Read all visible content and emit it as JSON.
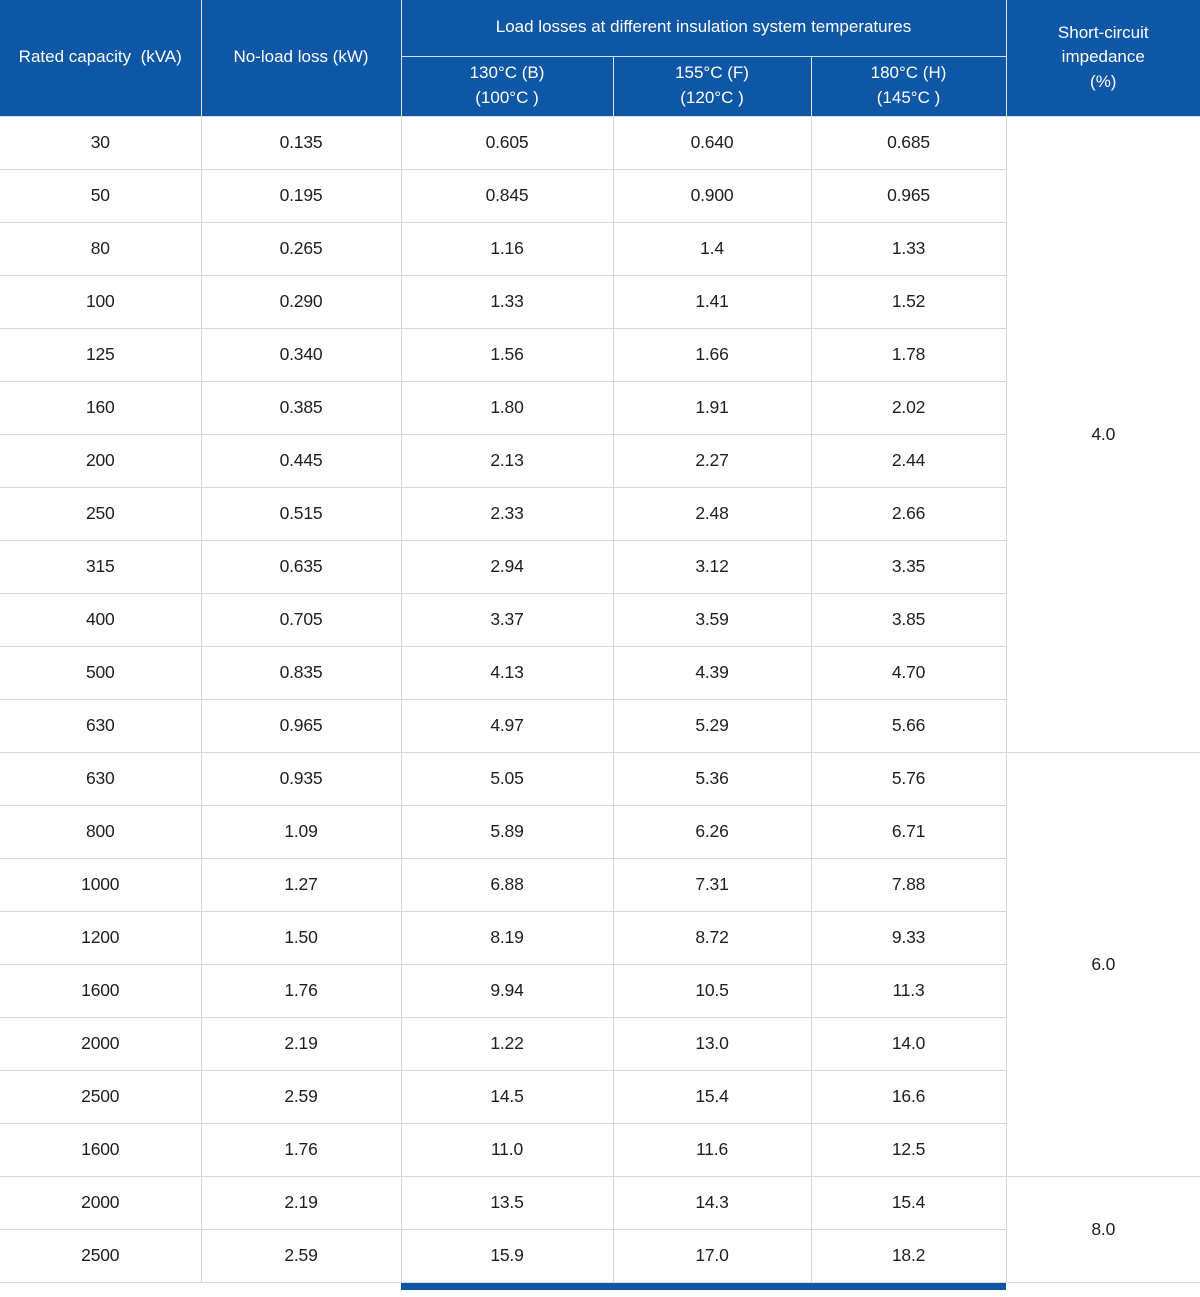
{
  "table": {
    "header": {
      "rated_capacity": "Rated capacity  (kVA)",
      "no_load_loss": "No-load loss (kW)",
      "load_losses_group": "Load losses at different insulation system temperatures",
      "temp_cols": [
        "130°C (B)\n(100°C )",
        "155°C (F)\n(120°C )",
        "180°C (H)\n(145°C )"
      ],
      "short_circuit_impedance": "Short-circuit\nimpedance\n(%)"
    },
    "groups": [
      {
        "impedance": "4.0",
        "rows": [
          [
            "30",
            "0.135",
            "0.605",
            "0.640",
            "0.685"
          ],
          [
            "50",
            "0.195",
            "0.845",
            "0.900",
            "0.965"
          ],
          [
            "80",
            "0.265",
            "1.16",
            "1.4",
            "1.33"
          ],
          [
            "100",
            "0.290",
            "1.33",
            "1.41",
            "1.52"
          ],
          [
            "125",
            "0.340",
            "1.56",
            "1.66",
            "1.78"
          ],
          [
            "160",
            "0.385",
            "1.80",
            "1.91",
            "2.02"
          ],
          [
            "200",
            "0.445",
            "2.13",
            "2.27",
            "2.44"
          ],
          [
            "250",
            "0.515",
            "2.33",
            "2.48",
            "2.66"
          ],
          [
            "315",
            "0.635",
            "2.94",
            "3.12",
            "3.35"
          ],
          [
            "400",
            "0.705",
            "3.37",
            "3.59",
            "3.85"
          ],
          [
            "500",
            "0.835",
            "4.13",
            "4.39",
            "4.70"
          ],
          [
            "630",
            "0.965",
            "4.97",
            "5.29",
            "5.66"
          ]
        ]
      },
      {
        "impedance": "6.0",
        "rows": [
          [
            "630",
            "0.935",
            "5.05",
            "5.36",
            "5.76"
          ],
          [
            "800",
            "1.09",
            "5.89",
            "6.26",
            "6.71"
          ],
          [
            "1000",
            "1.27",
            "6.88",
            "7.31",
            "7.88"
          ],
          [
            "1200",
            "1.50",
            "8.19",
            "8.72",
            "9.33"
          ],
          [
            "1600",
            "1.76",
            "9.94",
            "10.5",
            "11.3"
          ],
          [
            "2000",
            "2.19",
            "1.22",
            "13.0",
            "14.0"
          ],
          [
            "2500",
            "2.59",
            "14.5",
            "15.4",
            "16.6"
          ],
          [
            "1600",
            "1.76",
            "11.0",
            "11.6",
            "12.5"
          ]
        ]
      },
      {
        "impedance": "8.0",
        "rows": [
          [
            "2000",
            "2.19",
            "13.5",
            "14.3",
            "15.4"
          ],
          [
            "2500",
            "2.59",
            "15.9",
            "17.0",
            "18.2"
          ]
        ]
      }
    ]
  },
  "colors": {
    "header_bg": "#0E57A7",
    "header_text": "#FFFFFF",
    "body_border": "#D7D7D7",
    "body_text": "#1F1F1F",
    "bottom_bar": "#0E57A7"
  }
}
